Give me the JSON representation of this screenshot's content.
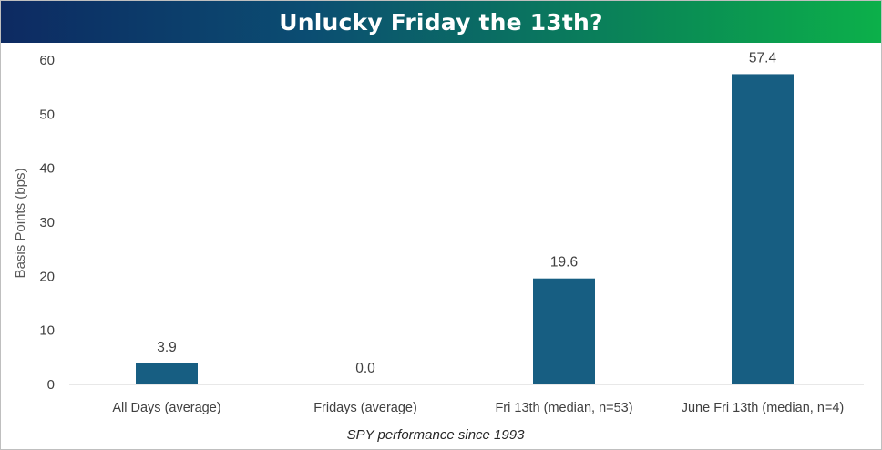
{
  "chart_data": {
    "type": "bar",
    "title": "Unlucky Friday the 13th?",
    "xlabel": "SPY performance since 1993",
    "ylabel": "Basis Points (bps)",
    "categories": [
      "All Days (average)",
      "Fridays (average)",
      "Fri 13th (median, n=53)",
      "June Fri 13th (median, n=4)"
    ],
    "values": [
      3.9,
      0.0,
      19.6,
      57.4
    ],
    "data_labels": [
      "3.9",
      "0.0",
      "19.6",
      "57.4"
    ],
    "ylim": [
      0,
      60
    ],
    "yticks": [
      "0",
      "10",
      "20",
      "30",
      "40",
      "50",
      "60"
    ],
    "grid": false,
    "legend": "none",
    "bar_color": "#175e82"
  }
}
